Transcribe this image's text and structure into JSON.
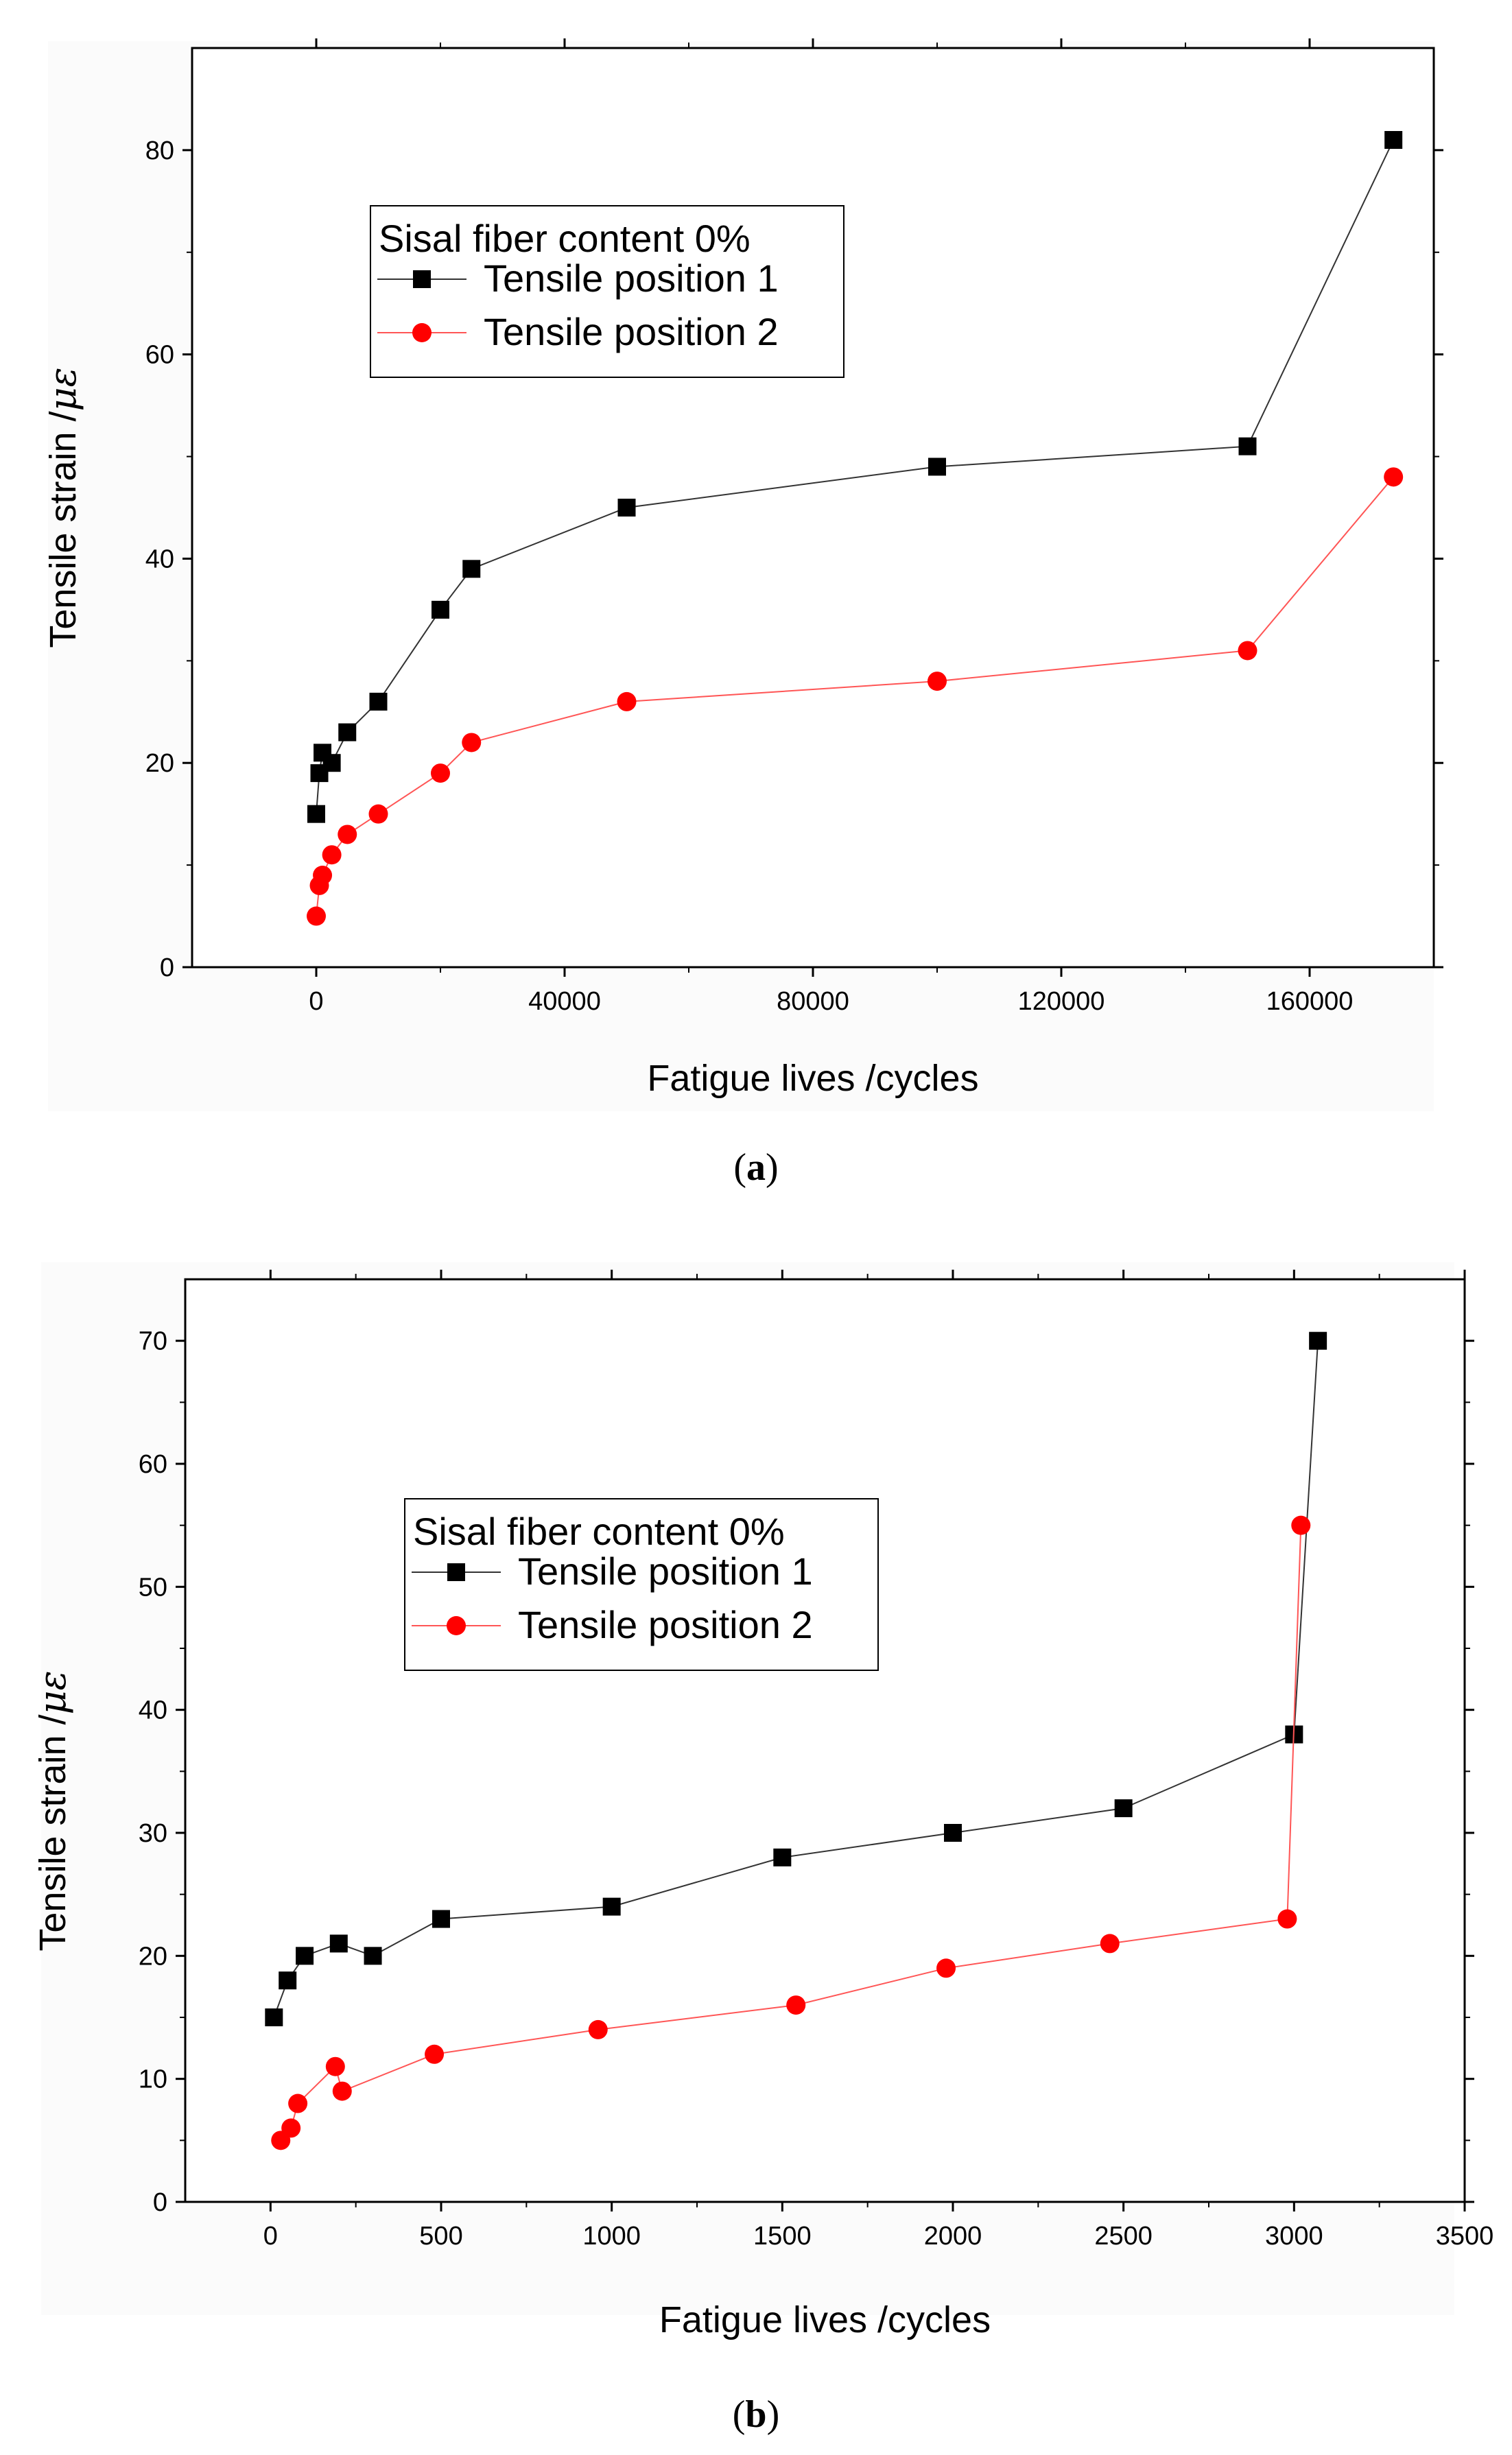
{
  "chart_data": [
    {
      "type": "line",
      "panel_label": "a",
      "title": "",
      "xlabel": "Fatigue lives   /cycles",
      "ylabel_text": "Tensile strain   /",
      "ylabel_unit": "με",
      "xlim": [
        -20000,
        180000
      ],
      "ylim": [
        0,
        90
      ],
      "xticks": [
        0,
        40000,
        80000,
        120000,
        160000
      ],
      "yticks": [
        0,
        20,
        40,
        60,
        80
      ],
      "xtick_labels": [
        "0",
        "40000",
        "80000",
        "120000",
        "160000"
      ],
      "ytick_labels": [
        "0",
        "20",
        "40",
        "60",
        "80"
      ],
      "legend_title": "Sisal fiber content 0%",
      "legend_position": "upper-left",
      "series": [
        {
          "name": "Tensile position 1",
          "color": "#000000",
          "marker": "square",
          "x": [
            0,
            500,
            1000,
            2500,
            5000,
            10000,
            20000,
            25000,
            50000,
            100000,
            150000,
            173500
          ],
          "y": [
            15,
            19,
            21,
            20,
            23,
            26,
            35,
            39,
            45,
            49,
            51,
            81
          ]
        },
        {
          "name": "Tensile position 2",
          "color": "#ff0000",
          "marker": "circle",
          "x": [
            0,
            500,
            1000,
            2500,
            5000,
            10000,
            20000,
            25000,
            50000,
            100000,
            150000,
            173500
          ],
          "y": [
            5,
            8,
            9,
            11,
            13,
            15,
            19,
            22,
            26,
            28,
            31,
            48
          ]
        }
      ]
    },
    {
      "type": "line",
      "panel_label": "b",
      "title": "",
      "xlabel": "Fatigue lives   /cycles",
      "ylabel_text": "Tensile strain   /",
      "ylabel_unit": "με",
      "xlim": [
        -250,
        3500
      ],
      "ylim": [
        0,
        75
      ],
      "xticks": [
        0,
        500,
        1000,
        1500,
        2000,
        2500,
        3000,
        3500
      ],
      "yticks": [
        0,
        10,
        20,
        30,
        40,
        50,
        60,
        70
      ],
      "xtick_labels": [
        "0",
        "500",
        "1000",
        "1500",
        "2000",
        "2500",
        "3000",
        "3500"
      ],
      "ytick_labels": [
        "0",
        "10",
        "20",
        "30",
        "40",
        "50",
        "60",
        "70"
      ],
      "legend_title": "Sisal fiber content 0%",
      "legend_position": "center-left",
      "series": [
        {
          "name": "Tensile position 1",
          "color": "#000000",
          "marker": "square",
          "x": [
            10,
            50,
            100,
            200,
            300,
            500,
            1000,
            1500,
            2000,
            2500,
            3000,
            3070
          ],
          "y": [
            15,
            18,
            20,
            21,
            20,
            23,
            24,
            28,
            30,
            32,
            38,
            70
          ]
        },
        {
          "name": "Tensile position 2",
          "color": "#ff0000",
          "marker": "circle",
          "x": [
            30,
            60,
            80,
            190,
            210,
            480,
            960,
            1540,
            1980,
            2460,
            2980,
            3020
          ],
          "y": [
            5,
            6,
            8,
            11,
            9,
            12,
            14,
            16,
            19,
            21,
            23,
            55
          ]
        }
      ]
    }
  ]
}
